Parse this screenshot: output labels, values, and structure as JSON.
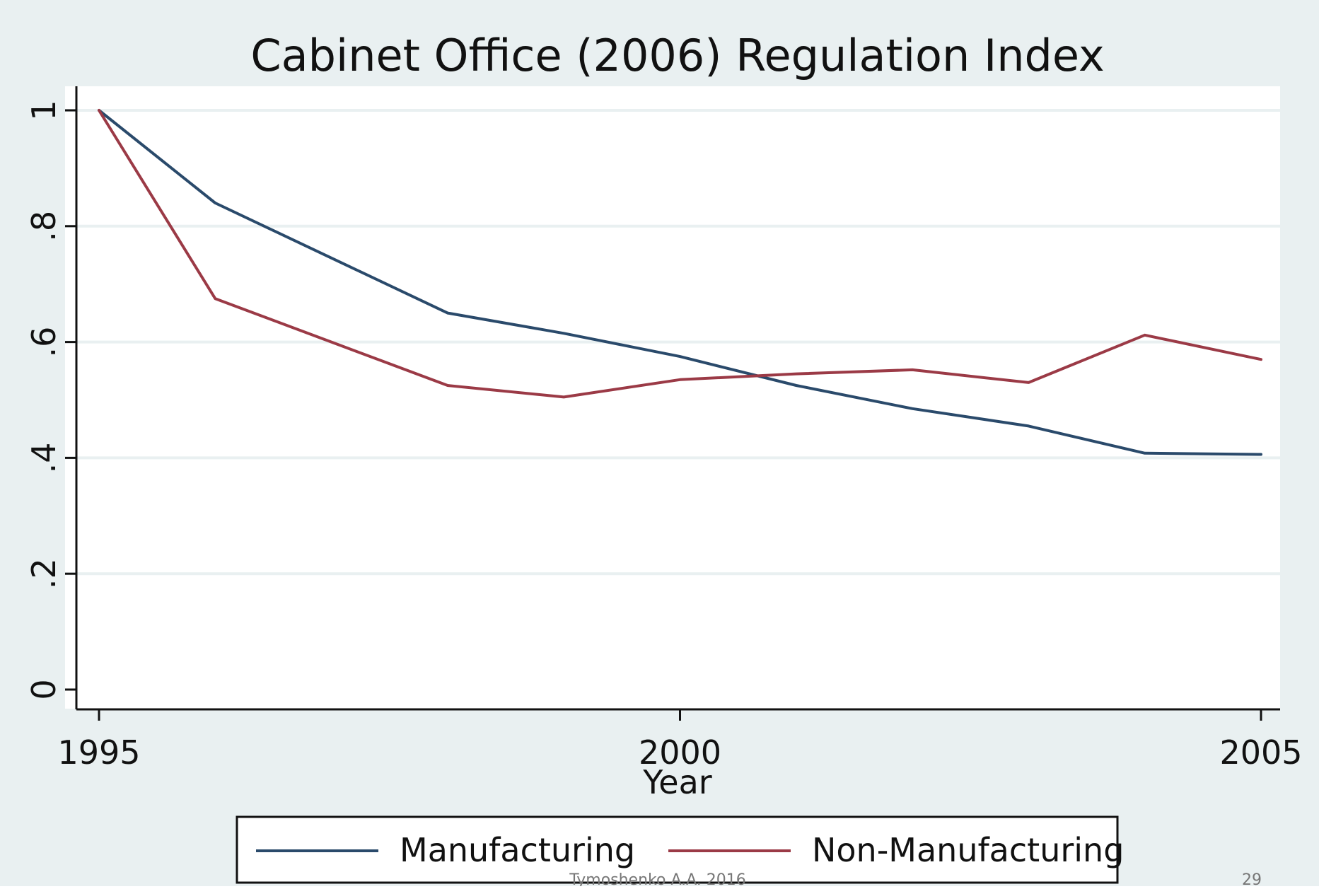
{
  "chart_data": {
    "type": "line",
    "title": "Cabinet Office (2006) Regulation Index",
    "xlabel": "Year",
    "ylabel": "",
    "xlim": [
      1995,
      2005
    ],
    "ylim": [
      0,
      1
    ],
    "x_ticks": [
      1995,
      2000,
      2005
    ],
    "x_tick_labels": [
      "1995",
      "2000",
      "2005"
    ],
    "y_ticks": [
      0,
      0.2,
      0.4,
      0.6,
      0.8,
      1
    ],
    "y_tick_labels": [
      "0",
      ".2",
      ".4",
      ".6",
      ".8",
      "1"
    ],
    "grid": true,
    "legend_position": "bottom",
    "series": [
      {
        "name": "Manufacturing",
        "color": "#2a4a6b",
        "x": [
          1995,
          1996,
          1997,
          1998,
          1999,
          2000,
          2001,
          2002,
          2003,
          2004,
          2005
        ],
        "y": [
          1.0,
          0.84,
          0.745,
          0.65,
          0.615,
          0.575,
          0.525,
          0.485,
          0.455,
          0.408,
          0.406
        ]
      },
      {
        "name": "Non-Manufacturing",
        "color": "#9b3a46",
        "x": [
          1995,
          1996,
          1997,
          1998,
          1999,
          2000,
          2001,
          2002,
          2003,
          2004,
          2005
        ],
        "y": [
          1.0,
          0.675,
          0.6,
          0.525,
          0.505,
          0.535,
          0.545,
          0.552,
          0.53,
          0.612,
          0.57
        ]
      }
    ]
  },
  "footer": {
    "left": "Tymoshenko A.A. 2016",
    "right": "29"
  },
  "colors": {
    "background": "#e9f0f1",
    "plot_background": "#ffffff",
    "grid": "#e9f0f1"
  }
}
